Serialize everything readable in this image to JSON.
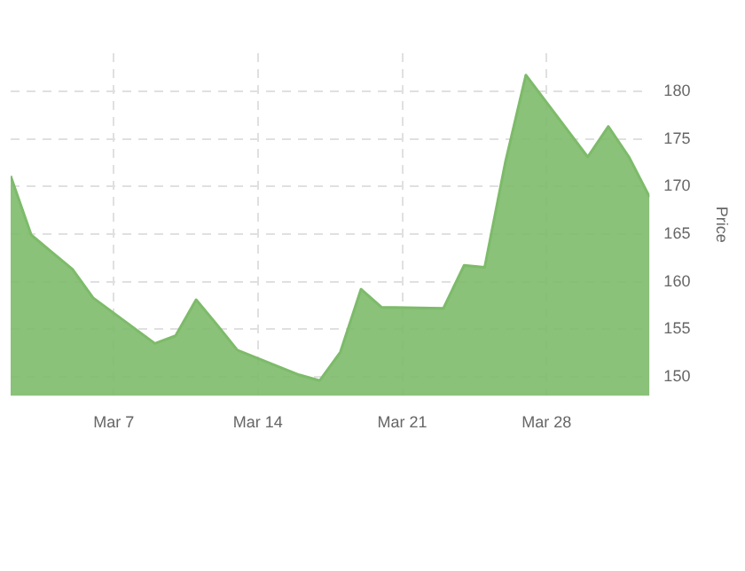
{
  "chart_data": {
    "type": "area",
    "ylabel": "Price",
    "x": [
      "--03-02",
      "--03-03",
      "--03-04",
      "--03-05",
      "--03-06",
      "--03-09",
      "--03-10",
      "--03-11",
      "--03-12",
      "--03-13",
      "--03-16",
      "--03-17",
      "--03-18",
      "--03-19",
      "--03-20",
      "--03-23",
      "--03-24",
      "--03-25",
      "--03-26",
      "--03-27",
      "--03-30",
      "--03-31",
      "--04-01",
      "--04-02"
    ],
    "series": [
      {
        "color": "#7dbb6a",
        "values": [
          171.1,
          164.9,
          163.1,
          161.3,
          158.3,
          153.5,
          154.3,
          158.1,
          155.5,
          152.8,
          150.2,
          149.6,
          152.6,
          159.2,
          157.3,
          157.2,
          161.7,
          161.5,
          172.5,
          181.7,
          173.1,
          176.3,
          173.1,
          168.9
        ]
      }
    ],
    "xticks": [
      {
        "value": "--03-07",
        "label": "Mar 7"
      },
      {
        "value": "--03-14",
        "label": "Mar 14"
      },
      {
        "value": "--03-21",
        "label": "Mar 21"
      },
      {
        "value": "--03-28",
        "label": "Mar 28"
      }
    ],
    "xlim": [
      "--03-02",
      "--04-02"
    ],
    "ylim": [
      148,
      184
    ],
    "yticks": [
      150,
      155,
      160,
      165,
      170,
      175,
      180
    ],
    "grid": true,
    "legend": false,
    "marker": "none",
    "line_style": "solid"
  }
}
